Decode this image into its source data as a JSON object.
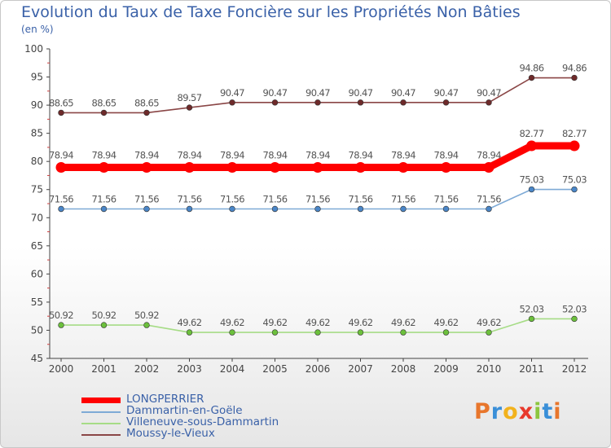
{
  "title": "Evolution du Taux de Taxe Foncière sur les Propriétés Non Bâties",
  "unit_label": "(en %)",
  "brand": {
    "letters": [
      "P",
      "r",
      "o",
      "x",
      "i",
      "t",
      "i"
    ],
    "colors": [
      "#e8762c",
      "#3a8fd8",
      "#f2b21c",
      "#e8392c",
      "#8cc63e",
      "#3a8fd8",
      "#e8762c"
    ]
  },
  "chart_data": {
    "type": "line",
    "categories": [
      "2000",
      "2001",
      "2002",
      "2003",
      "2004",
      "2005",
      "2006",
      "2007",
      "2008",
      "2009",
      "2010",
      "2011",
      "2012"
    ],
    "ylim": [
      45,
      100
    ],
    "yticks": [
      45,
      50,
      55,
      60,
      65,
      70,
      75,
      80,
      85,
      90,
      95,
      100
    ],
    "grid": false,
    "series": [
      {
        "name": "LONGPERRIER",
        "color": "#ff0000",
        "highlight": true,
        "values": [
          78.94,
          78.94,
          78.94,
          78.94,
          78.94,
          78.94,
          78.94,
          78.94,
          78.94,
          78.94,
          78.94,
          82.77,
          82.77
        ],
        "labels": [
          "78.94",
          "78.94",
          "78.94",
          "78.94",
          "78.94",
          "78.94",
          "78.94",
          "78.94",
          "78.94",
          "78.94",
          "78.94",
          "82.77",
          "82.77"
        ]
      },
      {
        "name": "Dammartin-en-Goële",
        "color": "#7eaad6",
        "point_color": "#4a86c8",
        "values": [
          71.56,
          71.56,
          71.56,
          71.56,
          71.56,
          71.56,
          71.56,
          71.56,
          71.56,
          71.56,
          71.56,
          75.03,
          75.03
        ],
        "labels": [
          "71.56",
          "71.56",
          "71.56",
          "71.56",
          "71.56",
          "71.56",
          "71.56",
          "71.56",
          "71.56",
          "71.56",
          "71.56",
          "75.03",
          "75.03"
        ]
      },
      {
        "name": "Villeneuve-sous-Dammartin",
        "color": "#a6dc86",
        "point_color": "#6cc03c",
        "values": [
          50.92,
          50.92,
          50.92,
          49.62,
          49.62,
          49.62,
          49.62,
          49.62,
          49.62,
          49.62,
          49.62,
          52.03,
          52.03
        ],
        "labels": [
          "50.92",
          "50.92",
          "50.92",
          "49.62",
          "49.62",
          "49.62",
          "49.62",
          "49.62",
          "49.62",
          "49.62",
          "49.62",
          "52.03",
          "52.03"
        ]
      },
      {
        "name": "Moussy-le-Vieux",
        "color": "#8a4646",
        "point_color": "#6e2a2a",
        "values": [
          88.65,
          88.65,
          88.65,
          89.57,
          90.47,
          90.47,
          90.47,
          90.47,
          90.47,
          90.47,
          90.47,
          94.86,
          94.86
        ],
        "labels": [
          "88.65",
          "88.65",
          "88.65",
          "89.57",
          "90.47",
          "90.47",
          "90.47",
          "90.47",
          "90.47",
          "90.47",
          "90.47",
          "94.86",
          "94.86"
        ]
      }
    ]
  }
}
